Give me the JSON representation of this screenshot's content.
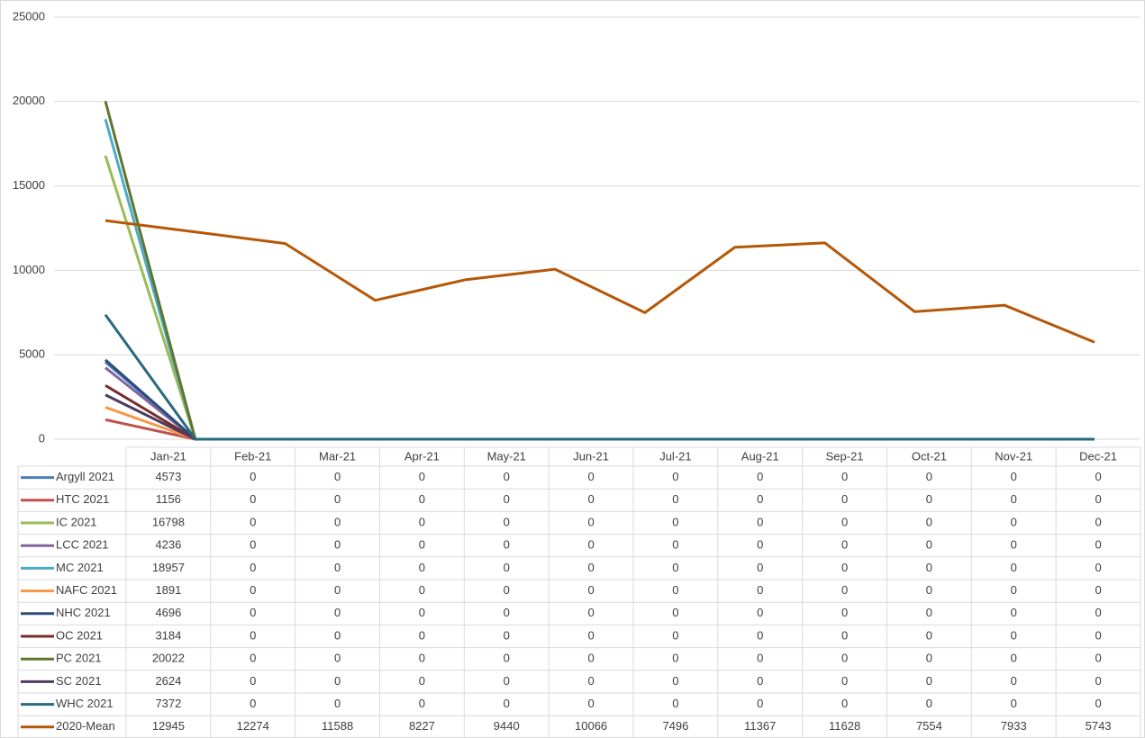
{
  "chart_data": {
    "type": "line",
    "categories": [
      "Jan-21",
      "Feb-21",
      "Mar-21",
      "Apr-21",
      "May-21",
      "Jun-21",
      "Jul-21",
      "Aug-21",
      "Sep-21",
      "Oct-21",
      "Nov-21",
      "Dec-21"
    ],
    "ylim": [
      0,
      25000
    ],
    "yticks": [
      0,
      5000,
      10000,
      15000,
      20000,
      25000
    ],
    "grid": true,
    "series": [
      {
        "name": "Argyll 2021",
        "color": "#4a7ebb",
        "values": [
          4573,
          0,
          0,
          0,
          0,
          0,
          0,
          0,
          0,
          0,
          0,
          0
        ]
      },
      {
        "name": "HTC 2021",
        "color": "#c0504d",
        "values": [
          1156,
          0,
          0,
          0,
          0,
          0,
          0,
          0,
          0,
          0,
          0,
          0
        ]
      },
      {
        "name": "IC 2021",
        "color": "#9bbb59",
        "values": [
          16798,
          0,
          0,
          0,
          0,
          0,
          0,
          0,
          0,
          0,
          0,
          0
        ]
      },
      {
        "name": "LCC 2021",
        "color": "#8064a2",
        "values": [
          4236,
          0,
          0,
          0,
          0,
          0,
          0,
          0,
          0,
          0,
          0,
          0
        ]
      },
      {
        "name": "MC 2021",
        "color": "#4bacc6",
        "values": [
          18957,
          0,
          0,
          0,
          0,
          0,
          0,
          0,
          0,
          0,
          0,
          0
        ]
      },
      {
        "name": "NAFC 2021",
        "color": "#f79646",
        "values": [
          1891,
          0,
          0,
          0,
          0,
          0,
          0,
          0,
          0,
          0,
          0,
          0
        ]
      },
      {
        "name": "NHC 2021",
        "color": "#2c4d75",
        "values": [
          4696,
          0,
          0,
          0,
          0,
          0,
          0,
          0,
          0,
          0,
          0,
          0
        ]
      },
      {
        "name": "OC 2021",
        "color": "#772c2a",
        "values": [
          3184,
          0,
          0,
          0,
          0,
          0,
          0,
          0,
          0,
          0,
          0,
          0
        ]
      },
      {
        "name": "PC 2021",
        "color": "#5f7530",
        "values": [
          20022,
          0,
          0,
          0,
          0,
          0,
          0,
          0,
          0,
          0,
          0,
          0
        ]
      },
      {
        "name": "SC 2021",
        "color": "#4d3b62",
        "values": [
          2624,
          0,
          0,
          0,
          0,
          0,
          0,
          0,
          0,
          0,
          0,
          0
        ]
      },
      {
        "name": "WHC 2021",
        "color": "#276a7c",
        "values": [
          7372,
          0,
          0,
          0,
          0,
          0,
          0,
          0,
          0,
          0,
          0,
          0
        ]
      },
      {
        "name": "2020-Mean",
        "color": "#b65708",
        "values": [
          12945,
          12274,
          11588,
          8227,
          9440,
          10066,
          7496,
          11367,
          11628,
          7554,
          7933,
          5743
        ]
      }
    ]
  }
}
